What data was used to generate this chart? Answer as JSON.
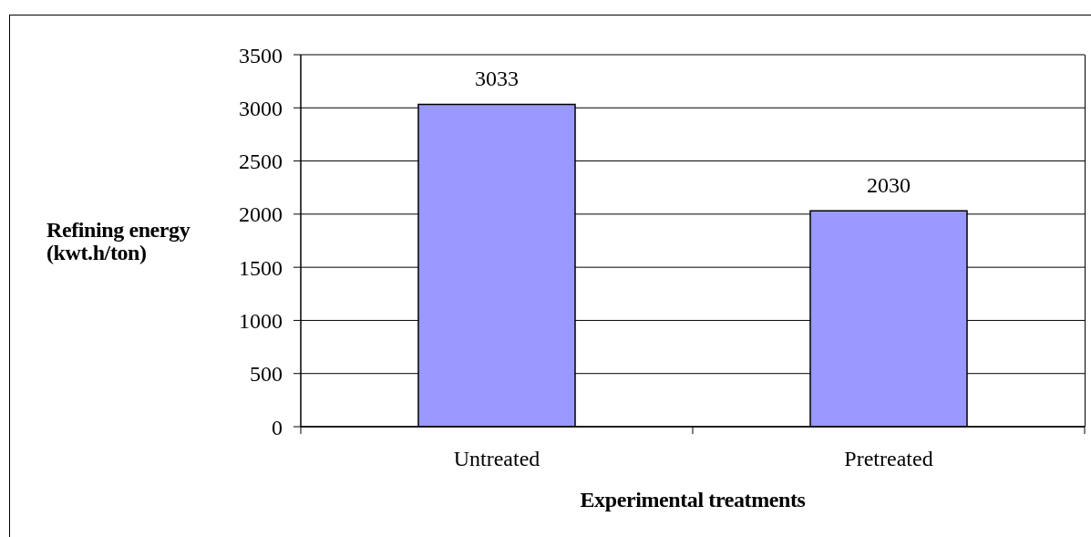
{
  "chart_data": {
    "type": "bar",
    "categories": [
      "Untreated",
      "Pretreated"
    ],
    "values": [
      3033,
      2030
    ],
    "color": "#9999ff",
    "xlabel": "Experimental treatments",
    "ylabel": "Refining energy (kwt.h/ton)",
    "ylim": [
      0,
      3500
    ],
    "yticks": [
      0,
      500,
      1000,
      1500,
      2000,
      2500,
      3000,
      3500
    ],
    "grid": "y",
    "data_labels": true
  }
}
